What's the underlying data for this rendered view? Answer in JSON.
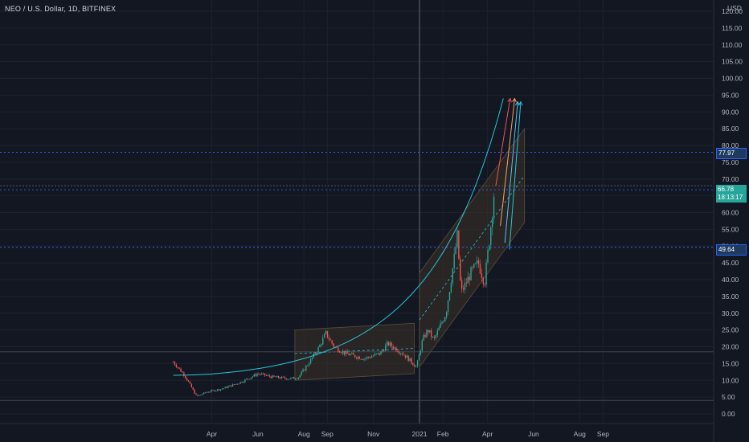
{
  "header": {
    "title": "NEO / U.S. Dollar, 1D, BITFINEX",
    "currency": "USD"
  },
  "colors": {
    "background": "#131722",
    "grid": "#1e2230",
    "up_candle": "#26a69a",
    "down_candle": "#ef5350",
    "channel_fill": "#3a3226",
    "curve": "#26c6da",
    "teal_label": "#26a69a"
  },
  "price_labels": {
    "level_high": "77.97",
    "current": "66.78",
    "countdown": "18:13:17",
    "level_mid": "49.64"
  },
  "chart_data": {
    "type": "candlestick",
    "title": "NEO / U.S. Dollar, 1D, BITFINEX",
    "xlabel": "",
    "ylabel": "USD",
    "y_ticks": [
      "0.00",
      "5.00",
      "10.00",
      "15.00",
      "20.00",
      "25.00",
      "30.00",
      "35.00",
      "40.00",
      "45.00",
      "50.00",
      "55.00",
      "60.00",
      "65.00",
      "70.00",
      "75.00",
      "80.00",
      "85.00",
      "90.00",
      "95.00",
      "100.00",
      "105.00",
      "110.00",
      "115.00",
      "120.00"
    ],
    "x_ticks": [
      "Apr",
      "Jun",
      "Aug",
      "Sep",
      "Nov",
      "2021",
      "Feb",
      "Apr",
      "Jun",
      "Aug",
      "Sep"
    ],
    "ylim": [
      -2,
      122
    ],
    "grid": true,
    "horizontal_levels": [
      77.97,
      66.78,
      49.64,
      18.5,
      4
    ],
    "close_path": [
      {
        "t": "2020-02-10",
        "v": 15.5
      },
      {
        "t": "2020-02-25",
        "v": 11.5
      },
      {
        "t": "2020-03-12",
        "v": 5.2
      },
      {
        "t": "2020-03-25",
        "v": 6.5
      },
      {
        "t": "2020-04-15",
        "v": 7.5
      },
      {
        "t": "2020-05-10",
        "v": 9.5
      },
      {
        "t": "2020-06-01",
        "v": 12.0
      },
      {
        "t": "2020-06-20",
        "v": 11.0
      },
      {
        "t": "2020-07-15",
        "v": 10.5
      },
      {
        "t": "2020-07-25",
        "v": 11.0
      },
      {
        "t": "2020-08-10",
        "v": 16.0
      },
      {
        "t": "2020-08-20",
        "v": 19.5
      },
      {
        "t": "2020-08-30",
        "v": 24.0
      },
      {
        "t": "2020-09-10",
        "v": 20.0
      },
      {
        "t": "2020-09-25",
        "v": 18.0
      },
      {
        "t": "2020-10-20",
        "v": 16.5
      },
      {
        "t": "2020-11-10",
        "v": 18.0
      },
      {
        "t": "2020-11-20",
        "v": 21.0
      },
      {
        "t": "2020-12-10",
        "v": 18.0
      },
      {
        "t": "2020-12-28",
        "v": 14.0
      },
      {
        "t": "2021-01-05",
        "v": 22.0
      },
      {
        "t": "2021-01-12",
        "v": 25.0
      },
      {
        "t": "2021-01-20",
        "v": 22.0
      },
      {
        "t": "2021-02-05",
        "v": 30.0
      },
      {
        "t": "2021-02-15",
        "v": 45.0
      },
      {
        "t": "2021-02-20",
        "v": 53.0
      },
      {
        "t": "2021-02-25",
        "v": 36.0
      },
      {
        "t": "2021-03-10",
        "v": 42.0
      },
      {
        "t": "2021-03-20",
        "v": 45.0
      },
      {
        "t": "2021-03-28",
        "v": 39.0
      },
      {
        "t": "2021-04-05",
        "v": 55.0
      },
      {
        "t": "2021-04-10",
        "v": 66.78
      }
    ]
  }
}
